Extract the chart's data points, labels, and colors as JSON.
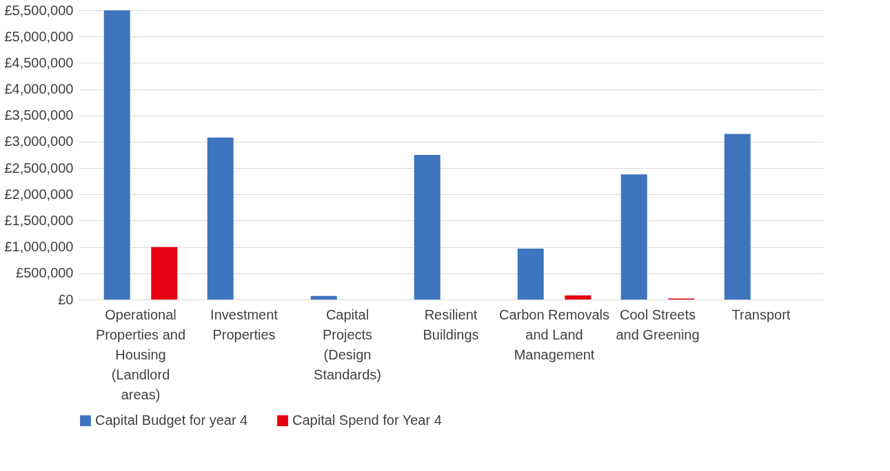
{
  "chart_data": {
    "type": "bar",
    "categories": [
      "Operational Properties and Housing (Landlord areas)",
      "Investment Properties",
      "Capital Projects (Design Standards)",
      "Resilient Buildings",
      "Carbon Removals and Land Management",
      "Cool Streets and Greening",
      "Transport"
    ],
    "series": [
      {
        "name": "Capital Budget for year 4",
        "color": "#3f74bf",
        "values": [
          5500000,
          3080000,
          70000,
          2750000,
          970000,
          2380000,
          3150000
        ]
      },
      {
        "name": "Capital Spend for Year 4",
        "color": "#e60012",
        "values": [
          1000000,
          0,
          0,
          0,
          80000,
          20000,
          0
        ]
      }
    ],
    "ylim": [
      0,
      5500000
    ],
    "yticks": [
      {
        "value": 0,
        "label": "£0"
      },
      {
        "value": 500000,
        "label": "£500,000"
      },
      {
        "value": 1000000,
        "label": "£1,000,000"
      },
      {
        "value": 1500000,
        "label": "£1,500,000"
      },
      {
        "value": 2000000,
        "label": "£2,000,000"
      },
      {
        "value": 2500000,
        "label": "£2,500,000"
      },
      {
        "value": 3000000,
        "label": "£3,000,000"
      },
      {
        "value": 3500000,
        "label": "£3,500,000"
      },
      {
        "value": 4000000,
        "label": "£4,000,000"
      },
      {
        "value": 4500000,
        "label": "£4,500,000"
      },
      {
        "value": 5000000,
        "label": "£5,000,000"
      },
      {
        "value": 5500000,
        "label": "£5,500,000"
      }
    ],
    "grid": "y",
    "legend": "bottom"
  }
}
